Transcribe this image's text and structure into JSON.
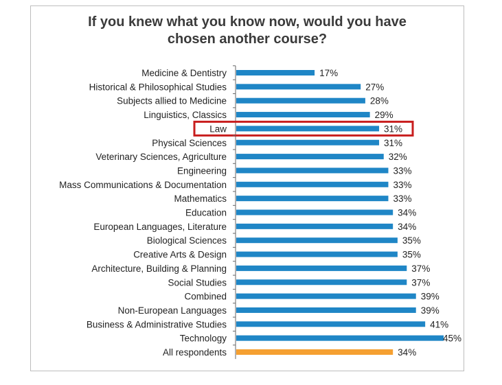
{
  "chart_data": {
    "type": "bar",
    "orientation": "horizontal",
    "title_lines": [
      "If you knew what you know now, would you have",
      "chosen another course?"
    ],
    "categories": [
      "Medicine & Dentistry",
      "Historical & Philosophical Studies",
      "Subjects allied to Medicine",
      "Linguistics, Classics",
      "Law",
      "Physical Sciences",
      "Veterinary Sciences, Agriculture",
      "Engineering",
      "Mass Communications & Documentation",
      "Mathematics",
      "Education",
      "European Languages, Literature",
      "Biological Sciences",
      "Creative Arts & Design",
      "Architecture, Building & Planning",
      "Social Studies",
      "Combined",
      "Non-European Languages",
      "Business & Administrative Studies",
      "Technology",
      "All respondents"
    ],
    "values": [
      17,
      27,
      28,
      29,
      31,
      31,
      32,
      33,
      33,
      33,
      34,
      34,
      35,
      35,
      37,
      37,
      39,
      39,
      41,
      45,
      34
    ],
    "value_labels": [
      "17%",
      "27%",
      "28%",
      "29%",
      "31%",
      "31%",
      "32%",
      "33%",
      "33%",
      "33%",
      "34%",
      "34%",
      "35%",
      "35%",
      "37%",
      "37%",
      "39%",
      "39%",
      "41%",
      "45%",
      "34%"
    ],
    "xlim": [
      0,
      45
    ],
    "highlighted_category": "Law",
    "colors": {
      "bar": "#1f86c6",
      "total_bar": "#f5a031",
      "highlight_box": "#c81e1e",
      "axis": "#666666"
    }
  }
}
